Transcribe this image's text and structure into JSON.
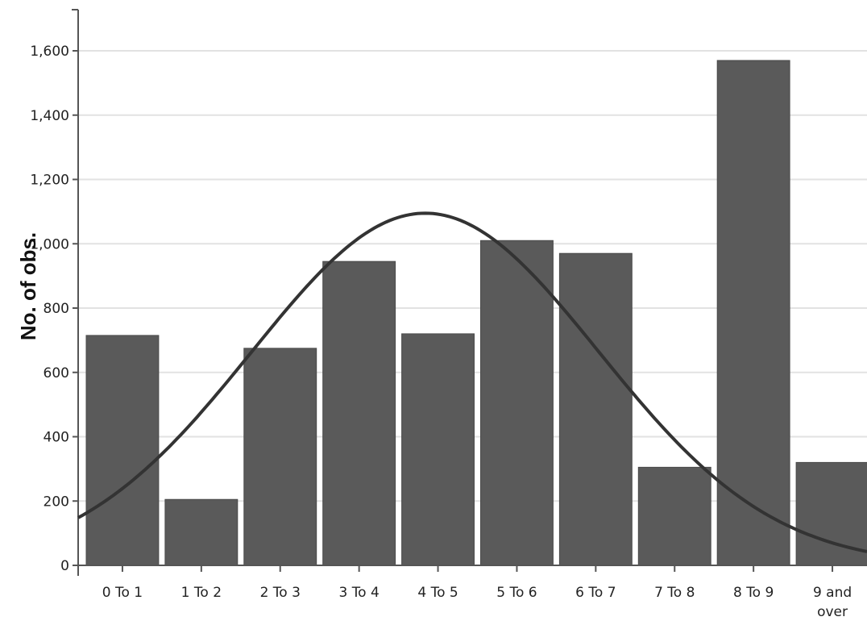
{
  "chart_data": {
    "type": "bar",
    "title": "",
    "xlabel": "",
    "ylabel": "No. of obs.",
    "categories": [
      "0 To 1",
      "1 To 2",
      "2 To 3",
      "3 To 4",
      "4 To 5",
      "5 To 6",
      "6 To 7",
      "7 To 8",
      "8 To 9",
      "9 and over"
    ],
    "values": [
      715,
      205,
      675,
      945,
      720,
      1010,
      970,
      305,
      1570,
      320
    ],
    "yticks": [
      "0",
      "200",
      "400",
      "600",
      "800",
      "1,000",
      "1,200",
      "1,400",
      "1,600"
    ],
    "ylim": [
      0,
      1720
    ],
    "grid": true,
    "bar_color": "#5a5a5a",
    "curve_color": "#333333",
    "curve": {
      "type": "normal",
      "peak": 1095,
      "mean": 4.4,
      "sd": 2.2
    }
  }
}
